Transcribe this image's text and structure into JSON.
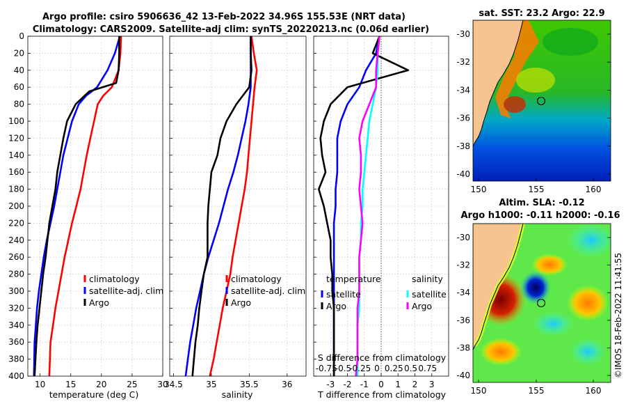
{
  "header": {
    "title_line1": "Argo profile: csiro 5906636_42 13-Feb-2022 34.96S 155.53E (NRT data)",
    "title_line2": "Climatology: CARS2009. Satellite-adj clim: synTS_20220213.nc (0.06d earlier)"
  },
  "maps": {
    "sst_title": "sat. SST: 23.2 Argo: 22.9",
    "sla_title_line1": "Altim. SLA: -0.12",
    "sla_title_line2": "Argo h1000: -0.11 h2000: -0.16",
    "lat_ticks": [
      "-30",
      "-32",
      "-34",
      "-36",
      "-38",
      "-40"
    ],
    "lon_ticks": [
      "150",
      "155",
      "160"
    ],
    "float_position": {
      "lon": 155.53,
      "lat": -34.96
    },
    "colors": {
      "land": "#f7c38e",
      "coast": "#000000"
    }
  },
  "footer": {
    "credit": "©IMOS 18-Feb-2022 11:41:55"
  },
  "chart_data": [
    {
      "type": "line",
      "name": "temperature",
      "xlabel": "temperature (deg C)",
      "ylabel": "",
      "xlim": [
        8,
        30
      ],
      "ylim": [
        400,
        0
      ],
      "xticks": [
        10,
        15,
        20,
        25,
        30
      ],
      "yticks": [
        0,
        20,
        40,
        60,
        80,
        100,
        120,
        140,
        160,
        180,
        200,
        220,
        240,
        260,
        280,
        300,
        320,
        340,
        360,
        380,
        400
      ],
      "grid": true,
      "legend": [
        "climatology",
        "satellite-adj. clim",
        "Argo"
      ],
      "legend_placement": "bottom-right",
      "series": [
        {
          "name": "climatology",
          "color": "#ff0000",
          "x": [
            23.2,
            23.1,
            22.8,
            21.7,
            20.3,
            19.4,
            18.8,
            18.2,
            17.6,
            17.1,
            16.6,
            15.9,
            15.2,
            14.6,
            14.0,
            13.5,
            13.0,
            12.5,
            12.1,
            11.7,
            11.5
          ],
          "y": [
            0,
            20,
            40,
            60,
            70,
            80,
            100,
            120,
            140,
            160,
            180,
            200,
            220,
            240,
            260,
            280,
            300,
            320,
            340,
            360,
            400
          ]
        },
        {
          "name": "satellite-adj. clim",
          "color": "#0000ff",
          "x": [
            23.0,
            22.2,
            21.0,
            19.3,
            17.5,
            16.3,
            15.2,
            14.5,
            13.8,
            13.3,
            12.8,
            12.3,
            11.7,
            11.1,
            10.6,
            10.2,
            9.8,
            9.5,
            9.3,
            9.1,
            9.0
          ],
          "y": [
            0,
            20,
            40,
            60,
            70,
            80,
            100,
            120,
            140,
            160,
            180,
            200,
            220,
            240,
            260,
            280,
            300,
            320,
            340,
            360,
            400
          ]
        },
        {
          "name": "Argo",
          "color": "#000000",
          "x": [
            22.9,
            22.9,
            22.8,
            22.4,
            18.0,
            15.8,
            14.4,
            13.8,
            13.3,
            12.8,
            12.5,
            12.0,
            11.5,
            11.2,
            10.9,
            10.5,
            10.2,
            9.9,
            9.6,
            9.4,
            9.1
          ],
          "y": [
            0,
            20,
            40,
            55,
            65,
            80,
            100,
            120,
            140,
            160,
            180,
            200,
            220,
            240,
            260,
            280,
            300,
            320,
            340,
            360,
            400
          ]
        }
      ]
    },
    {
      "type": "line",
      "name": "salinity",
      "xlabel": "salinity",
      "ylabel": "",
      "xlim": [
        34.45,
        36.25
      ],
      "ylim": [
        400,
        0
      ],
      "xticks": [
        34.5,
        35,
        35.5,
        36
      ],
      "xtick_labels": [
        "34.5",
        "35",
        "35.5",
        "36"
      ],
      "grid": true,
      "legend": [
        "climatology",
        "satellite-adj. clim",
        "Argo"
      ],
      "legend_placement": "bottom-right",
      "series": [
        {
          "name": "climatology",
          "color": "#ff0000",
          "x": [
            35.53,
            35.56,
            35.6,
            35.57,
            35.55,
            35.53,
            35.51,
            35.49,
            35.47,
            35.44,
            35.4,
            35.36,
            35.32,
            35.28,
            35.25,
            35.2,
            35.15,
            35.11,
            35.07,
            35.03,
            34.98
          ],
          "y": [
            0,
            20,
            40,
            60,
            80,
            100,
            120,
            140,
            160,
            180,
            200,
            220,
            240,
            260,
            280,
            300,
            320,
            340,
            360,
            380,
            400
          ]
        },
        {
          "name": "satellite-adj. clim",
          "color": "#0000ff",
          "x": [
            35.52,
            35.52,
            35.52,
            35.52,
            35.49,
            35.45,
            35.4,
            35.35,
            35.29,
            35.22,
            35.16,
            35.1,
            35.03,
            34.96,
            34.9,
            34.85,
            34.8,
            34.76,
            34.72,
            34.69,
            34.66
          ],
          "y": [
            0,
            20,
            40,
            60,
            80,
            100,
            120,
            140,
            160,
            180,
            200,
            220,
            240,
            260,
            280,
            300,
            320,
            340,
            360,
            380,
            400
          ]
        },
        {
          "name": "Argo",
          "color": "#000000",
          "x": [
            35.52,
            35.52,
            35.53,
            35.5,
            35.33,
            35.2,
            35.12,
            35.08,
            35.0,
            34.98,
            34.96,
            34.95,
            34.95,
            34.95,
            34.9,
            34.87,
            34.84,
            34.82,
            34.79,
            34.77,
            34.75
          ],
          "y": [
            0,
            20,
            40,
            60,
            80,
            100,
            120,
            140,
            160,
            180,
            200,
            220,
            240,
            260,
            280,
            300,
            320,
            340,
            360,
            380,
            400
          ]
        }
      ]
    },
    {
      "type": "line",
      "name": "difference from climatology",
      "xlabel": "T difference from climatology",
      "xlabel_top": "S difference from climatology",
      "xlim": [
        -4,
        4
      ],
      "ylim": [
        400,
        0
      ],
      "xticks": [
        -3,
        -2,
        -1,
        0,
        1,
        2,
        3
      ],
      "s_xtick_labels": [
        "-0.75",
        "-0.5",
        "-0.25",
        "0",
        "0.25",
        "0.5",
        "0.75"
      ],
      "grid": true,
      "legend_groups": [
        {
          "title": "temperature",
          "entries": [
            "satellite",
            "Argo"
          ]
        },
        {
          "title": "salinity",
          "entries": [
            "satellite",
            "Argo"
          ]
        }
      ],
      "series": [
        {
          "name": "temperature satellite",
          "color": "#0000ff",
          "x": [
            -0.1,
            -0.3,
            -0.9,
            -1.3,
            -2.0,
            -2.4,
            -2.6,
            -2.6,
            -2.6,
            -2.7,
            -2.7,
            -2.8,
            -2.8,
            -2.8,
            -2.8,
            -2.8,
            -2.8,
            -2.8,
            -2.8,
            -2.8,
            -2.8
          ],
          "y": [
            0,
            20,
            40,
            60,
            80,
            100,
            120,
            140,
            160,
            180,
            200,
            220,
            240,
            260,
            280,
            300,
            320,
            340,
            360,
            380,
            400
          ]
        },
        {
          "name": "temperature Argo",
          "color": "#000000",
          "x": [
            -0.1,
            -0.5,
            1.6,
            -2.0,
            -3.0,
            -3.4,
            -3.6,
            -3.5,
            -3.3,
            -3.7,
            -3.4,
            -3.2,
            -3.0,
            -3.0,
            -2.9,
            -2.9,
            -2.8,
            -2.8,
            -2.8,
            -2.8,
            -2.8
          ],
          "y": [
            0,
            20,
            40,
            60,
            80,
            100,
            120,
            140,
            160,
            180,
            200,
            220,
            240,
            260,
            280,
            300,
            320,
            340,
            360,
            380,
            400
          ]
        },
        {
          "name": "salinity satellite",
          "color": "#00ffff",
          "x": [
            -0.1,
            -0.2,
            -0.2,
            -0.3,
            -0.5,
            -0.7,
            -0.8,
            -0.9,
            -1.0,
            -1.1,
            -1.1,
            -1.2,
            -1.2,
            -1.3,
            -1.3,
            -1.3,
            -1.3,
            -1.4,
            -1.4,
            -1.4,
            -1.4
          ],
          "y": [
            0,
            20,
            40,
            60,
            80,
            100,
            120,
            140,
            160,
            180,
            200,
            220,
            240,
            260,
            280,
            300,
            320,
            340,
            360,
            380,
            400
          ]
        },
        {
          "name": "salinity Argo",
          "color": "#ff00ff",
          "x": [
            -0.1,
            -0.2,
            -0.3,
            -0.3,
            -0.7,
            -1.1,
            -1.3,
            -1.2,
            -1.2,
            -1.3,
            -1.2,
            -1.1,
            -1.2,
            -1.3,
            -1.3,
            -1.3,
            -1.4,
            -1.4,
            -1.4,
            -1.4,
            -1.5
          ],
          "y": [
            0,
            20,
            40,
            60,
            80,
            100,
            120,
            140,
            160,
            180,
            200,
            220,
            240,
            260,
            280,
            300,
            320,
            340,
            360,
            380,
            400
          ]
        }
      ]
    }
  ]
}
